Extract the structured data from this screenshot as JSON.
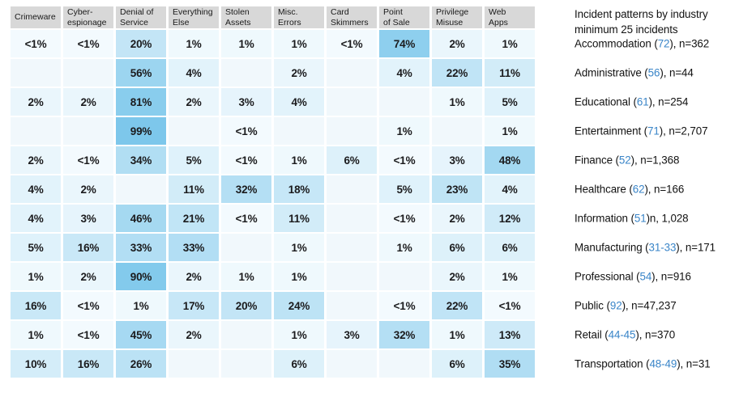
{
  "chart_data": {
    "type": "heatmap",
    "title_lines": [
      "Incident patterns by industry",
      "minimum 25 incidents"
    ],
    "unit": "%",
    "value_range": [
      0,
      100
    ],
    "legend": "none",
    "grid": "cell-matrix",
    "columns": [
      [
        "Crimeware"
      ],
      [
        "Cyber-",
        "espionage"
      ],
      [
        "Denial of",
        "Service"
      ],
      [
        "Everything",
        "Else"
      ],
      [
        "Stolen",
        "Assets"
      ],
      [
        "Misc.",
        "Errors"
      ],
      [
        "Card",
        "Skimmers"
      ],
      [
        "Point",
        "of Sale"
      ],
      [
        "Privilege",
        "Misuse"
      ],
      [
        "Web",
        "Apps"
      ]
    ],
    "colors": {
      "header_bg": "#D8D8D8",
      "blank_cell": "#F1F8FC",
      "scale_min": "#FCFEFF",
      "scale_max": "#7CC7EB",
      "code_link": "#3A85C8",
      "cell_text": "#1B1B1D",
      "header_text": "#1A1A1A",
      "panel_text": "#121212"
    },
    "rows": [
      {
        "label_pre": "Accommodation (",
        "code": "72",
        "label_post": "), n=362",
        "cells": [
          "<1%",
          "<1%",
          "20%",
          "1%",
          "1%",
          "1%",
          "<1%",
          "74%",
          "2%",
          "1%"
        ]
      },
      {
        "label_pre": "Administrative (",
        "code": "56",
        "label_post": "), n=44",
        "cells": [
          "",
          "",
          "56%",
          "4%",
          "",
          "2%",
          "",
          "4%",
          "22%",
          "11%"
        ]
      },
      {
        "label_pre": "Educational (",
        "code": "61",
        "label_post": "), n=254",
        "cells": [
          "2%",
          "2%",
          "81%",
          "2%",
          "3%",
          "4%",
          "",
          "",
          "1%",
          "5%"
        ]
      },
      {
        "label_pre": "Entertainment (",
        "code": "71",
        "label_post": "), n=2,707",
        "cells": [
          "",
          "",
          "99%",
          "",
          "<1%",
          "",
          "",
          "1%",
          "",
          "1%"
        ]
      },
      {
        "label_pre": "Finance (",
        "code": "52",
        "label_post": "), n=1,368",
        "cells": [
          "2%",
          "<1%",
          "34%",
          "5%",
          "<1%",
          "1%",
          "6%",
          "<1%",
          "3%",
          "48%"
        ]
      },
      {
        "label_pre": "Healthcare (",
        "code": "62",
        "label_post": "), n=166",
        "cells": [
          "4%",
          "2%",
          "",
          "11%",
          "32%",
          "18%",
          "",
          "5%",
          "23%",
          "4%"
        ]
      },
      {
        "label_pre": "Information (",
        "code": "51",
        "label_post": ")n, 1,028",
        "cells": [
          "4%",
          "3%",
          "46%",
          "21%",
          "<1%",
          "11%",
          "",
          "<1%",
          "2%",
          "12%"
        ]
      },
      {
        "label_pre": "Manufacturing (",
        "code": "31-33",
        "label_post": "), n=171",
        "cells": [
          "5%",
          "16%",
          "33%",
          "33%",
          "",
          "1%",
          "",
          "1%",
          "6%",
          "6%"
        ]
      },
      {
        "label_pre": "Professional (",
        "code": "54",
        "label_post": "), n=916",
        "cells": [
          "1%",
          "2%",
          "90%",
          "2%",
          "1%",
          "1%",
          "",
          "",
          "2%",
          "1%"
        ]
      },
      {
        "label_pre": "Public (",
        "code": "92",
        "label_post": "), n=47,237",
        "cells": [
          "16%",
          "<1%",
          "1%",
          "17%",
          "20%",
          "24%",
          "",
          "<1%",
          "22%",
          "<1%"
        ]
      },
      {
        "label_pre": "Retail (",
        "code": "44-45",
        "label_post": "), n=370",
        "cells": [
          "1%",
          "<1%",
          "45%",
          "2%",
          "",
          "1%",
          "3%",
          "32%",
          "1%",
          "13%"
        ]
      },
      {
        "label_pre": "Transportation (",
        "code": "48-49",
        "label_post": "), n=31",
        "cells": [
          "10%",
          "16%",
          "26%",
          "",
          "",
          "6%",
          "",
          "",
          "6%",
          "35%"
        ]
      }
    ]
  }
}
